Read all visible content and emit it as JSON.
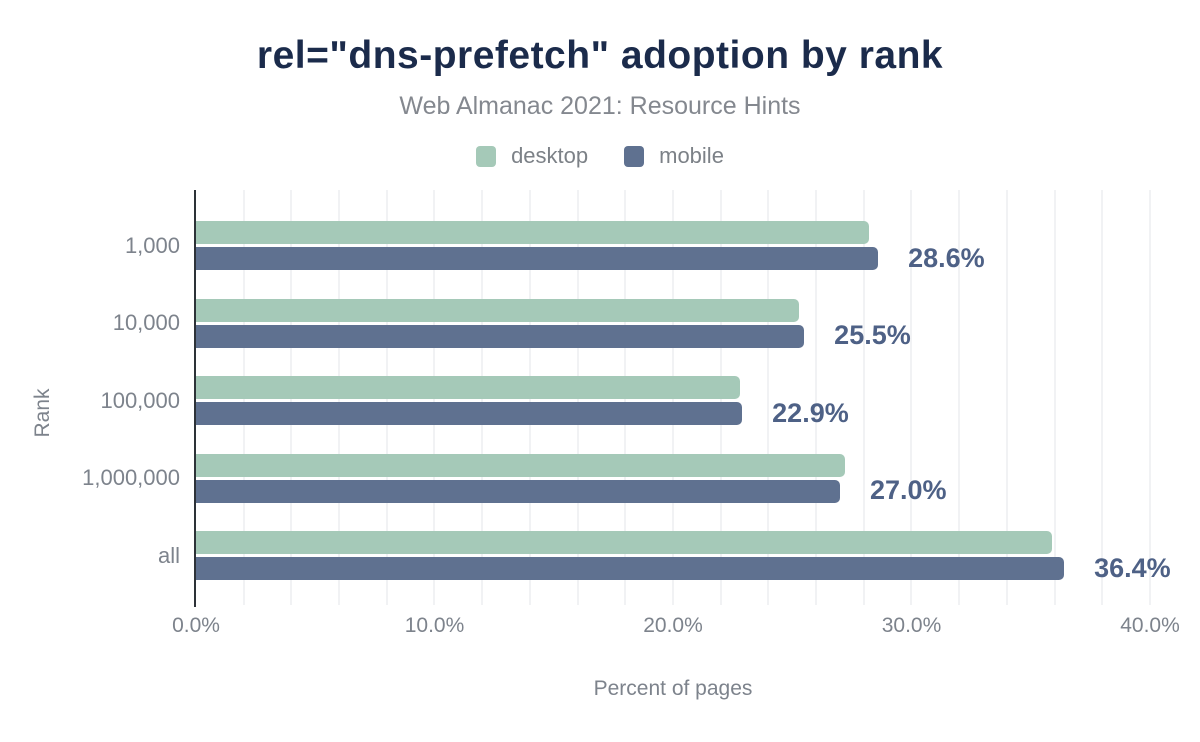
{
  "chart_data": {
    "type": "bar",
    "orientation": "horizontal",
    "title": "rel=\"dns-prefetch\" adoption by rank",
    "subtitle": "Web Almanac 2021: Resource Hints",
    "categories": [
      "1,000",
      "10,000",
      "100,000",
      "1,000,000",
      "all"
    ],
    "series": [
      {
        "name": "desktop",
        "color": "#a5c9b8",
        "values": [
          28.2,
          25.3,
          22.8,
          27.2,
          35.9
        ]
      },
      {
        "name": "mobile",
        "color": "#5f7190",
        "values": [
          28.6,
          25.5,
          22.9,
          27.0,
          36.4
        ]
      }
    ],
    "data_labels": [
      "28.6%",
      "25.5%",
      "22.9%",
      "27.0%",
      "36.4%"
    ],
    "data_label_series": "mobile",
    "xlabel": "Percent of pages",
    "ylabel": "Rank",
    "x_ticks": [
      "0.0%",
      "10.0%",
      "20.0%",
      "30.0%",
      "40.0%"
    ],
    "x_tick_values": [
      0,
      10,
      20,
      30,
      40
    ],
    "xlim": [
      0,
      41.3
    ],
    "grid_step": 2,
    "legend_position": "top",
    "grid": "vertical-light"
  },
  "colors": {
    "title": "#1b2b4b",
    "subtitle": "#84888f",
    "axis_text": "#7d838c",
    "value_label": "#4e6186",
    "axis_line": "#2d3238",
    "gridline": "#f1f2f4",
    "background": "#ffffff"
  }
}
